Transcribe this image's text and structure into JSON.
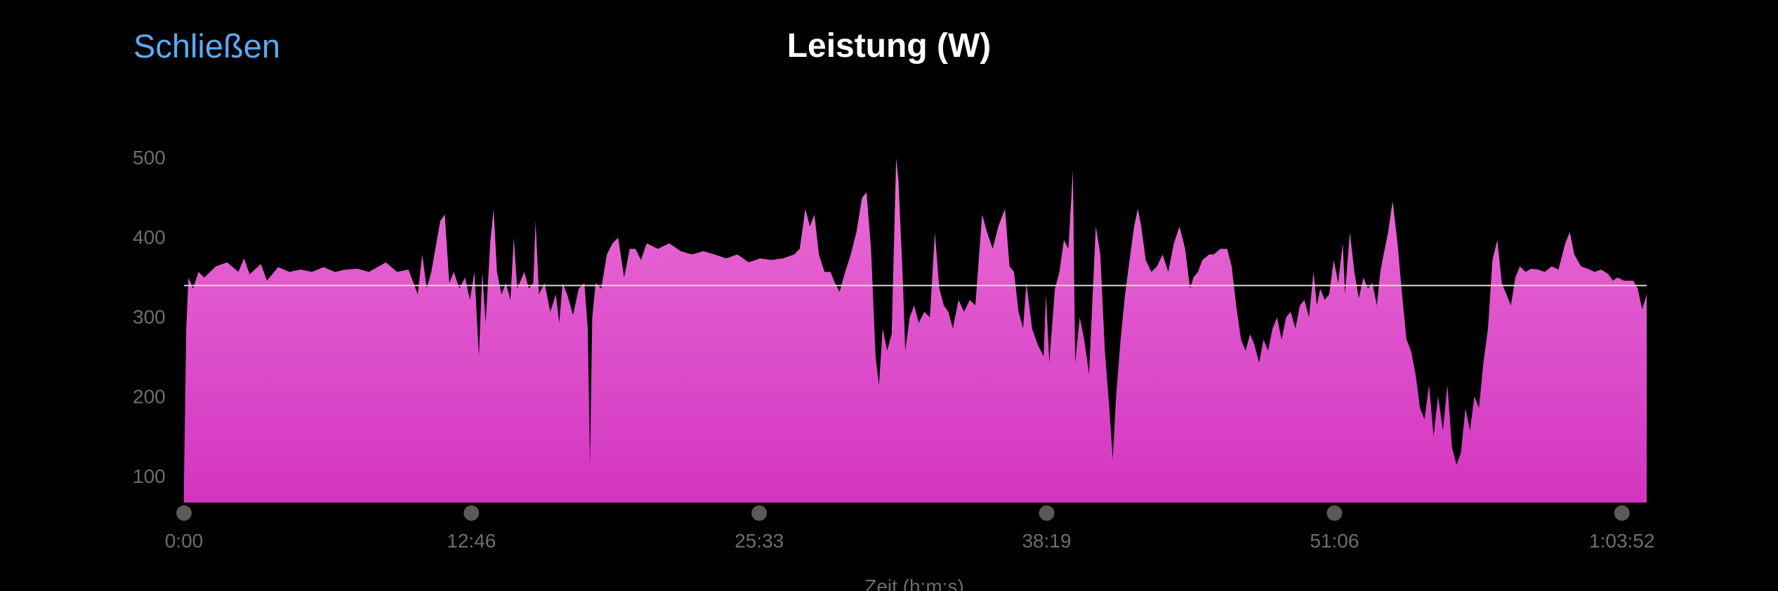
{
  "header": {
    "close_label": "Schließen",
    "title": "Leistung (W)"
  },
  "colors": {
    "accent": "#5aaaf2",
    "fill_top": "#e96fd6",
    "fill_bottom": "#d334c1",
    "average_line": "#d8d8d8",
    "axis_text": "#6d6d6d"
  },
  "chart_data": {
    "type": "area",
    "title": "Leistung (W)",
    "xlabel": "Zeit (h:m:s)",
    "ylabel": "",
    "x_unit": "seconds",
    "xlim": [
      0,
      3898
    ],
    "ylim": [
      67,
      540
    ],
    "grid": false,
    "yticks": [
      100,
      200,
      300,
      400,
      500
    ],
    "ytick_labels": [
      "100",
      "200",
      "300",
      "400",
      "500"
    ],
    "xticks": [
      0,
      766,
      1533,
      2299,
      3066,
      3832
    ],
    "xtick_labels": [
      "0:00",
      "12:46",
      "25:33",
      "38:19",
      "51:06",
      "1:03:52"
    ],
    "average_line": 339,
    "points": [
      [
        0,
        93
      ],
      [
        6,
        285
      ],
      [
        12,
        349
      ],
      [
        24,
        335
      ],
      [
        39,
        356
      ],
      [
        54,
        349
      ],
      [
        85,
        363
      ],
      [
        115,
        368
      ],
      [
        145,
        356
      ],
      [
        160,
        373
      ],
      [
        175,
        353
      ],
      [
        205,
        366
      ],
      [
        221,
        345
      ],
      [
        251,
        362
      ],
      [
        281,
        356
      ],
      [
        311,
        359
      ],
      [
        341,
        356
      ],
      [
        372,
        362
      ],
      [
        402,
        356
      ],
      [
        432,
        359
      ],
      [
        462,
        360
      ],
      [
        493,
        356
      ],
      [
        538,
        368
      ],
      [
        568,
        356
      ],
      [
        598,
        359
      ],
      [
        623,
        328
      ],
      [
        635,
        378
      ],
      [
        647,
        335
      ],
      [
        659,
        356
      ],
      [
        683,
        420
      ],
      [
        695,
        428
      ],
      [
        707,
        342
      ],
      [
        719,
        356
      ],
      [
        734,
        335
      ],
      [
        749,
        349
      ],
      [
        762,
        321
      ],
      [
        774,
        356
      ],
      [
        786,
        250
      ],
      [
        795,
        356
      ],
      [
        804,
        292
      ],
      [
        816,
        392
      ],
      [
        825,
        435
      ],
      [
        834,
        356
      ],
      [
        846,
        328
      ],
      [
        858,
        342
      ],
      [
        870,
        321
      ],
      [
        879,
        399
      ],
      [
        888,
        335
      ],
      [
        907,
        356
      ],
      [
        919,
        335
      ],
      [
        931,
        342
      ],
      [
        937,
        420
      ],
      [
        946,
        328
      ],
      [
        961,
        342
      ],
      [
        976,
        306
      ],
      [
        991,
        328
      ],
      [
        1000,
        292
      ],
      [
        1009,
        342
      ],
      [
        1021,
        328
      ],
      [
        1037,
        302
      ],
      [
        1052,
        335
      ],
      [
        1067,
        342
      ],
      [
        1076,
        285
      ],
      [
        1082,
        114
      ],
      [
        1088,
        299
      ],
      [
        1097,
        342
      ],
      [
        1112,
        335
      ],
      [
        1127,
        378
      ],
      [
        1142,
        392
      ],
      [
        1157,
        399
      ],
      [
        1173,
        349
      ],
      [
        1188,
        385
      ],
      [
        1203,
        385
      ],
      [
        1218,
        371
      ],
      [
        1233,
        392
      ],
      [
        1263,
        385
      ],
      [
        1293,
        392
      ],
      [
        1324,
        382
      ],
      [
        1354,
        378
      ],
      [
        1384,
        382
      ],
      [
        1414,
        378
      ],
      [
        1445,
        373
      ],
      [
        1475,
        378
      ],
      [
        1505,
        368
      ],
      [
        1535,
        373
      ],
      [
        1565,
        371
      ],
      [
        1596,
        373
      ],
      [
        1626,
        378
      ],
      [
        1641,
        385
      ],
      [
        1656,
        435
      ],
      [
        1668,
        413
      ],
      [
        1680,
        428
      ],
      [
        1692,
        378
      ],
      [
        1707,
        356
      ],
      [
        1723,
        356
      ],
      [
        1735,
        342
      ],
      [
        1747,
        331
      ],
      [
        1762,
        356
      ],
      [
        1777,
        378
      ],
      [
        1792,
        406
      ],
      [
        1807,
        449
      ],
      [
        1819,
        456
      ],
      [
        1831,
        385
      ],
      [
        1843,
        250
      ],
      [
        1852,
        214
      ],
      [
        1862,
        285
      ],
      [
        1874,
        257
      ],
      [
        1886,
        278
      ],
      [
        1898,
        499
      ],
      [
        1904,
        470
      ],
      [
        1916,
        342
      ],
      [
        1922,
        257
      ],
      [
        1934,
        299
      ],
      [
        1946,
        314
      ],
      [
        1958,
        292
      ],
      [
        1973,
        306
      ],
      [
        1988,
        299
      ],
      [
        2001,
        406
      ],
      [
        2013,
        335
      ],
      [
        2025,
        314
      ],
      [
        2037,
        306
      ],
      [
        2049,
        285
      ],
      [
        2064,
        321
      ],
      [
        2079,
        306
      ],
      [
        2094,
        321
      ],
      [
        2109,
        314
      ],
      [
        2127,
        428
      ],
      [
        2140,
        406
      ],
      [
        2155,
        385
      ],
      [
        2170,
        413
      ],
      [
        2188,
        435
      ],
      [
        2200,
        363
      ],
      [
        2212,
        356
      ],
      [
        2224,
        306
      ],
      [
        2236,
        285
      ],
      [
        2245,
        342
      ],
      [
        2260,
        285
      ],
      [
        2276,
        264
      ],
      [
        2291,
        250
      ],
      [
        2297,
        328
      ],
      [
        2306,
        242
      ],
      [
        2321,
        335
      ],
      [
        2333,
        356
      ],
      [
        2345,
        396
      ],
      [
        2357,
        385
      ],
      [
        2369,
        484
      ],
      [
        2375,
        242
      ],
      [
        2387,
        299
      ],
      [
        2399,
        271
      ],
      [
        2412,
        228
      ],
      [
        2430,
        413
      ],
      [
        2442,
        378
      ],
      [
        2454,
        257
      ],
      [
        2466,
        185
      ],
      [
        2475,
        121
      ],
      [
        2484,
        200
      ],
      [
        2496,
        271
      ],
      [
        2508,
        328
      ],
      [
        2520,
        371
      ],
      [
        2532,
        413
      ],
      [
        2542,
        435
      ],
      [
        2551,
        413
      ],
      [
        2563,
        371
      ],
      [
        2578,
        356
      ],
      [
        2593,
        363
      ],
      [
        2608,
        378
      ],
      [
        2623,
        356
      ],
      [
        2638,
        392
      ],
      [
        2653,
        413
      ],
      [
        2668,
        385
      ],
      [
        2681,
        335
      ],
      [
        2690,
        349
      ],
      [
        2702,
        356
      ],
      [
        2714,
        371
      ],
      [
        2732,
        378
      ],
      [
        2744,
        378
      ],
      [
        2762,
        385
      ],
      [
        2780,
        385
      ],
      [
        2792,
        363
      ],
      [
        2804,
        314
      ],
      [
        2817,
        271
      ],
      [
        2829,
        257
      ],
      [
        2841,
        278
      ],
      [
        2853,
        264
      ],
      [
        2865,
        242
      ],
      [
        2877,
        271
      ],
      [
        2889,
        257
      ],
      [
        2901,
        285
      ],
      [
        2913,
        299
      ],
      [
        2925,
        271
      ],
      [
        2937,
        299
      ],
      [
        2949,
        306
      ],
      [
        2962,
        285
      ],
      [
        2974,
        314
      ],
      [
        2986,
        321
      ],
      [
        2998,
        299
      ],
      [
        3010,
        356
      ],
      [
        3019,
        314
      ],
      [
        3028,
        335
      ],
      [
        3040,
        321
      ],
      [
        3052,
        328
      ],
      [
        3064,
        371
      ],
      [
        3076,
        342
      ],
      [
        3088,
        392
      ],
      [
        3094,
        328
      ],
      [
        3107,
        406
      ],
      [
        3119,
        356
      ],
      [
        3131,
        323
      ],
      [
        3143,
        349
      ],
      [
        3155,
        335
      ],
      [
        3167,
        342
      ],
      [
        3179,
        314
      ],
      [
        3188,
        356
      ],
      [
        3197,
        378
      ],
      [
        3209,
        406
      ],
      [
        3221,
        445
      ],
      [
        3234,
        392
      ],
      [
        3246,
        328
      ],
      [
        3258,
        271
      ],
      [
        3270,
        257
      ],
      [
        3282,
        228
      ],
      [
        3294,
        185
      ],
      [
        3306,
        171
      ],
      [
        3318,
        214
      ],
      [
        3330,
        150
      ],
      [
        3342,
        200
      ],
      [
        3355,
        157
      ],
      [
        3367,
        214
      ],
      [
        3379,
        136
      ],
      [
        3391,
        114
      ],
      [
        3403,
        129
      ],
      [
        3415,
        185
      ],
      [
        3427,
        157
      ],
      [
        3439,
        200
      ],
      [
        3451,
        185
      ],
      [
        3463,
        242
      ],
      [
        3475,
        285
      ],
      [
        3487,
        371
      ],
      [
        3500,
        396
      ],
      [
        3512,
        342
      ],
      [
        3524,
        328
      ],
      [
        3536,
        314
      ],
      [
        3548,
        349
      ],
      [
        3560,
        363
      ],
      [
        3575,
        356
      ],
      [
        3590,
        360
      ],
      [
        3608,
        359
      ],
      [
        3626,
        356
      ],
      [
        3645,
        363
      ],
      [
        3663,
        359
      ],
      [
        3681,
        392
      ],
      [
        3693,
        406
      ],
      [
        3705,
        378
      ],
      [
        3723,
        363
      ],
      [
        3741,
        360
      ],
      [
        3759,
        356
      ],
      [
        3777,
        359
      ],
      [
        3796,
        353
      ],
      [
        3808,
        345
      ],
      [
        3820,
        349
      ],
      [
        3838,
        345
      ],
      [
        3862,
        345
      ],
      [
        3874,
        335
      ],
      [
        3886,
        309
      ],
      [
        3898,
        328
      ]
    ]
  }
}
